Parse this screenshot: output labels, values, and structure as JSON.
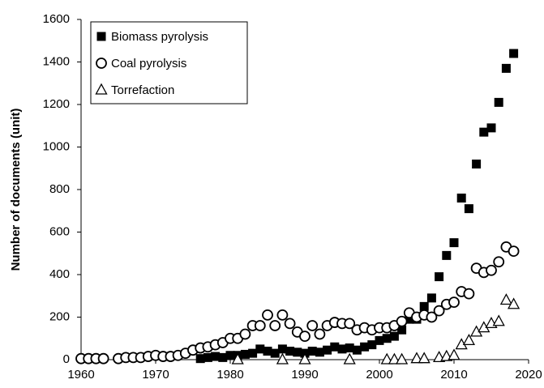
{
  "chart_data": {
    "type": "scatter",
    "y_label": "Number of documents (unit)",
    "xlim": [
      1960,
      2020
    ],
    "xticks": [
      1960,
      1970,
      1980,
      1990,
      2000,
      2010,
      2020
    ],
    "ylim": [
      0,
      1600
    ],
    "yticks": [
      0,
      200,
      400,
      600,
      800,
      1000,
      1200,
      1400,
      1600
    ],
    "grid": false,
    "legend": "upper left",
    "series": [
      {
        "name": "Biomass pyrolysis",
        "color": "#000000",
        "marker": "square",
        "x": [
          1976,
          1977,
          1978,
          1979,
          1980,
          1981,
          1982,
          1983,
          1984,
          1985,
          1986,
          1987,
          1988,
          1989,
          1990,
          1991,
          1992,
          1993,
          1994,
          1995,
          1996,
          1997,
          1998,
          1999,
          2000,
          2001,
          2002,
          2003,
          2004,
          2005,
          2006,
          2007,
          2008,
          2009,
          2010,
          2011,
          2012,
          2013,
          2014,
          2015,
          2016,
          2017,
          2018
        ],
        "values": [
          5,
          10,
          15,
          10,
          20,
          20,
          25,
          30,
          50,
          40,
          30,
          50,
          40,
          35,
          30,
          40,
          35,
          45,
          60,
          50,
          55,
          45,
          60,
          70,
          90,
          100,
          110,
          140,
          190,
          190,
          250,
          290,
          390,
          490,
          550,
          760,
          710,
          920,
          1070,
          1090,
          1210,
          1370,
          1440
        ]
      },
      {
        "name": "Coal pyrolysis",
        "color": "#000000",
        "marker": "circle",
        "x": [
          1960,
          1961,
          1962,
          1963,
          1965,
          1966,
          1967,
          1968,
          1969,
          1970,
          1971,
          1972,
          1973,
          1974,
          1975,
          1976,
          1977,
          1978,
          1979,
          1980,
          1981,
          1982,
          1983,
          1984,
          1985,
          1986,
          1987,
          1988,
          1989,
          1990,
          1991,
          1992,
          1993,
          1994,
          1995,
          1996,
          1997,
          1998,
          1999,
          2000,
          2001,
          2002,
          2003,
          2004,
          2005,
          2006,
          2007,
          2008,
          2009,
          2010,
          2011,
          2012,
          2013,
          2014,
          2015,
          2016,
          2017,
          2018
        ],
        "values": [
          5,
          5,
          5,
          5,
          5,
          10,
          10,
          10,
          15,
          20,
          15,
          15,
          20,
          30,
          45,
          55,
          60,
          70,
          80,
          100,
          100,
          120,
          160,
          160,
          210,
          160,
          210,
          170,
          130,
          110,
          160,
          120,
          160,
          175,
          170,
          170,
          140,
          150,
          140,
          150,
          150,
          160,
          180,
          220,
          200,
          210,
          200,
          230,
          260,
          270,
          320,
          310,
          430,
          410,
          420,
          460,
          530,
          510
        ]
      },
      {
        "name": "Torrefaction",
        "color": "#000000",
        "marker": "triangle",
        "x": [
          1981,
          1987,
          1990,
          1996,
          2001,
          2002,
          2003,
          2005,
          2006,
          2008,
          2009,
          2010,
          2011,
          2012,
          2013,
          2014,
          2015,
          2016,
          2017,
          2018
        ],
        "values": [
          0,
          0,
          0,
          0,
          0,
          0,
          0,
          5,
          5,
          10,
          15,
          20,
          70,
          90,
          130,
          150,
          170,
          180,
          280,
          260
        ]
      }
    ]
  }
}
